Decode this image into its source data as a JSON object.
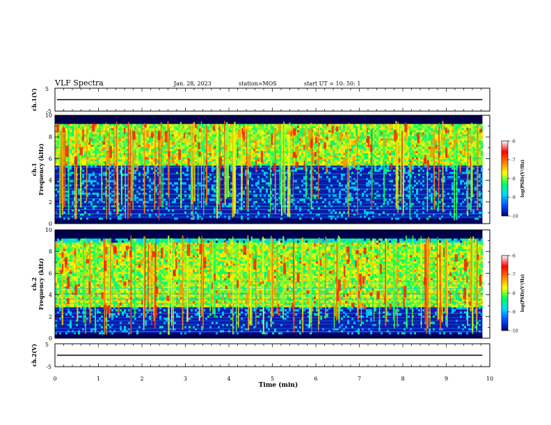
{
  "header": {
    "title": "VLF Spectra",
    "date": "Jan. 28, 2023",
    "station": "station=MOS",
    "start_ut": "start  UT =   10: 50: 1"
  },
  "chart_data": {
    "type": "heatmap",
    "xlabel": "Time (min)",
    "xlim": [
      0,
      10
    ],
    "x_ticks": [
      "0",
      "1",
      "2",
      "3",
      "4",
      "5",
      "6",
      "7",
      "8",
      "9",
      "10"
    ],
    "data_end_min": 9.83,
    "waveforms": [
      {
        "name": "ch.1",
        "ylabel": "ch.1(V)",
        "ylim": [
          -5,
          5
        ],
        "y_ticks": [
          "5",
          "-5"
        ],
        "level": 0
      },
      {
        "name": "ch.2",
        "ylabel": "ch.2(V)",
        "ylim": [
          -5,
          5
        ],
        "y_ticks": [
          "5",
          "-5"
        ],
        "level": 0
      }
    ],
    "spectrograms": [
      {
        "name": "ch.1",
        "ylabel_line1": "ch.1",
        "ylabel_line2": "Frequency (kHz)",
        "ylim": [
          0,
          10
        ],
        "y_ticks": [
          "0",
          "2",
          "4",
          "6",
          "8",
          "10"
        ],
        "emission_band_khz": [
          5.5,
          9.3
        ],
        "noise_floor_khz": [
          0.4,
          2.0
        ]
      },
      {
        "name": "ch.2",
        "ylabel_line1": "ch.2",
        "ylabel_line2": "Frequency (kHz)",
        "ylim": [
          0,
          10
        ],
        "y_ticks": [
          "0",
          "2",
          "4",
          "6",
          "8",
          "10"
        ],
        "emission_band_khz": [
          3.0,
          9.0
        ],
        "noise_floor_khz": [
          0.4,
          2.0
        ]
      }
    ],
    "colorbar": {
      "label": "log(PSD)(V²/Hz)",
      "range": [
        -10,
        -6
      ],
      "ticks": [
        "-6",
        "-7",
        "-8",
        "-9",
        "-10"
      ],
      "colors": [
        "#00007a",
        "#0050ff",
        "#00d8ff",
        "#00ff60",
        "#ffff00",
        "#ff8000",
        "#ff0000",
        "#ffffff"
      ]
    }
  }
}
